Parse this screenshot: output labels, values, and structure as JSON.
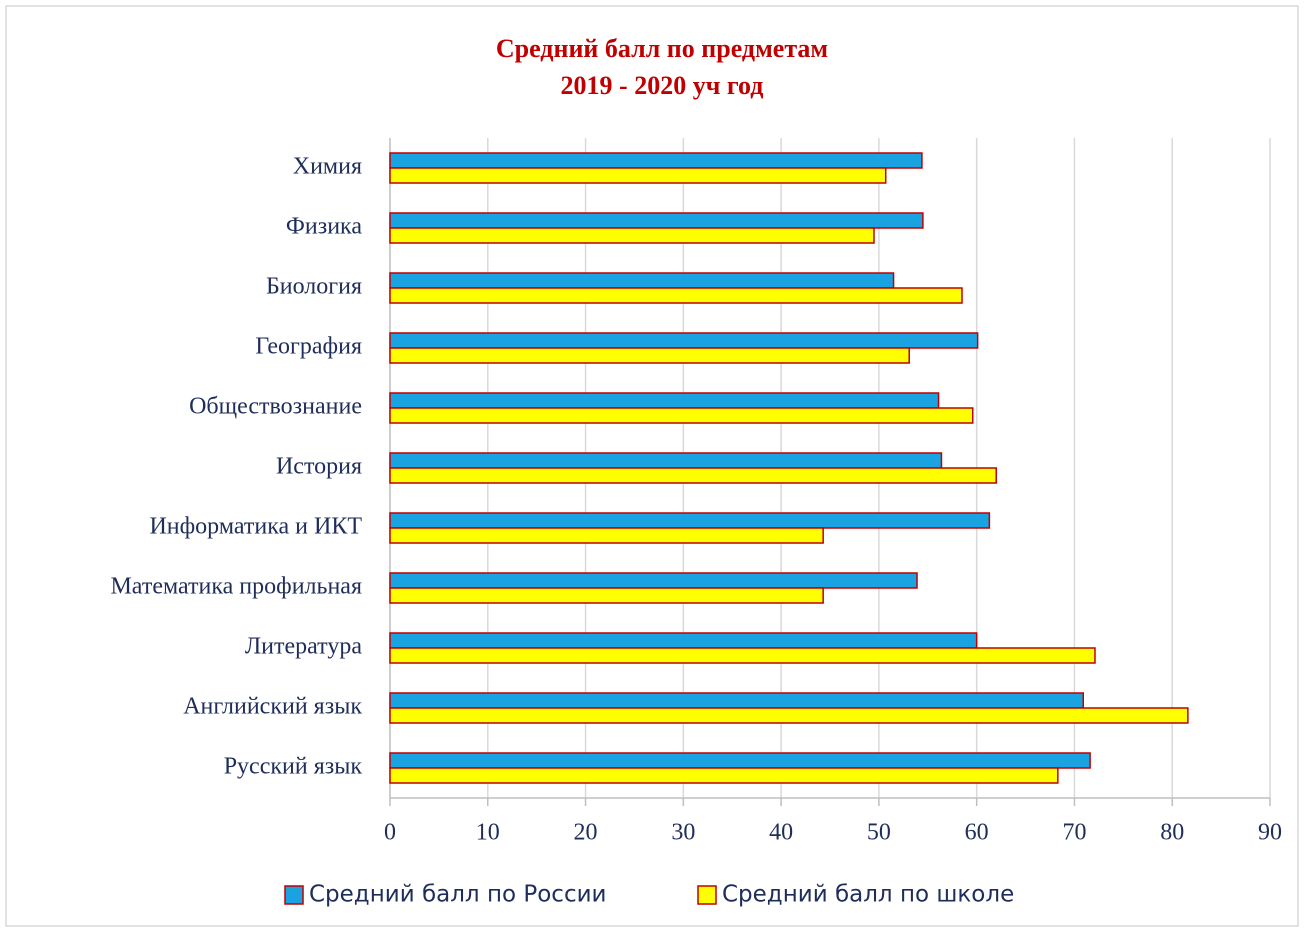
{
  "chart_data": {
    "type": "bar",
    "orientation": "horizontal",
    "title": "Средний балл по предметам",
    "subtitle": "2019 - 2020 уч год",
    "categories": [
      "Химия",
      "Физика",
      "Биология",
      "География",
      "Обществознание",
      "История",
      "Информатика и ИКТ",
      "Математика профильная",
      "Литература",
      "Английский язык",
      "Русский язык"
    ],
    "series": [
      {
        "name": "Средний балл по России",
        "color": "#1aa3e0",
        "values": [
          54.4,
          54.5,
          51.5,
          60.1,
          56.1,
          56.4,
          61.3,
          53.9,
          60.0,
          70.9,
          71.6
        ]
      },
      {
        "name": "Средний балл по школе",
        "color": "#ffff00",
        "values": [
          50.7,
          49.5,
          58.5,
          53.1,
          59.6,
          62.0,
          44.3,
          44.3,
          72.1,
          81.6,
          68.3
        ]
      }
    ],
    "xlim": [
      0,
      90
    ],
    "xticks": [
      0,
      10,
      20,
      30,
      40,
      50,
      60,
      70,
      80,
      90
    ],
    "grid": true,
    "legend": "bottom"
  }
}
